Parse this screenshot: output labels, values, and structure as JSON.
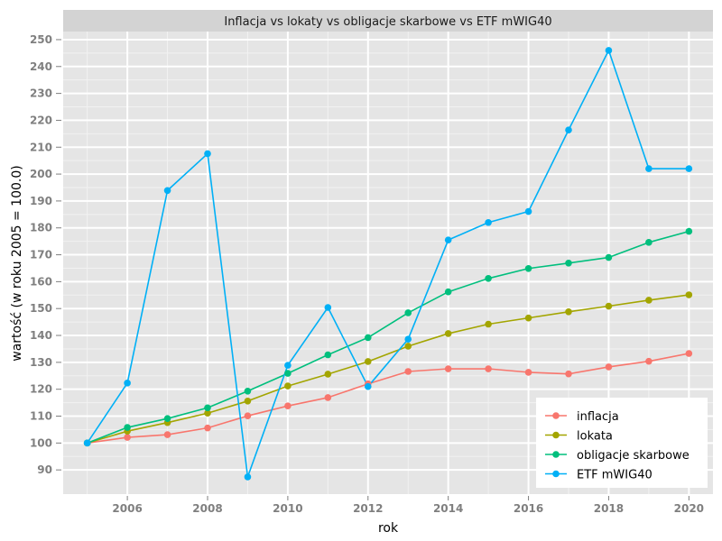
{
  "chart_data": {
    "type": "line",
    "title": "Inflacja vs lokaty vs obligacje skarbowe vs ETF mWIG40",
    "xlabel": "rok",
    "ylabel": "wartość (w roku 2005 = 100.0)",
    "x": [
      2005,
      2006,
      2007,
      2008,
      2009,
      2010,
      2011,
      2012,
      2013,
      2014,
      2015,
      2016,
      2017,
      2018,
      2019,
      2020
    ],
    "xlim": [
      2004.4,
      2020.6
    ],
    "ylim": [
      81,
      253
    ],
    "xticks": [
      "2006",
      "2008",
      "2010",
      "2012",
      "2014",
      "2016",
      "2018",
      "2020"
    ],
    "yticks": [
      "90",
      "100",
      "110",
      "120",
      "130",
      "140",
      "150",
      "160",
      "170",
      "180",
      "190",
      "200",
      "210",
      "220",
      "230",
      "240",
      "250"
    ],
    "grid": true,
    "legend_position": "bottom-right",
    "series": [
      {
        "name": "inflacja",
        "color": "#f8766d",
        "values": [
          100.0,
          102.1,
          103.1,
          105.6,
          110.1,
          113.8,
          116.9,
          122.0,
          126.6,
          127.6,
          127.6,
          126.3,
          125.7,
          128.3,
          130.4,
          133.3
        ]
      },
      {
        "name": "lokata",
        "color": "#a3a500",
        "values": [
          100.0,
          104.4,
          107.6,
          111.1,
          115.6,
          121.2,
          125.6,
          130.3,
          136.0,
          140.7,
          144.2,
          146.5,
          148.8,
          150.9,
          153.1,
          155.1
        ]
      },
      {
        "name": "obligacje skarbowe",
        "color": "#00bf7d",
        "values": [
          100.0,
          105.8,
          109.1,
          113.1,
          119.3,
          125.9,
          132.8,
          139.2,
          148.4,
          156.2,
          161.2,
          164.9,
          166.9,
          169.0,
          174.6,
          178.7
        ]
      },
      {
        "name": "ETF mWIG40",
        "color": "#00b0f6",
        "values": [
          100.0,
          122.3,
          193.9,
          207.6,
          87.4,
          128.9,
          150.4,
          121.0,
          138.6,
          175.5,
          182.0,
          186.1,
          216.4,
          246.0,
          202.0,
          202.0
        ]
      }
    ]
  }
}
